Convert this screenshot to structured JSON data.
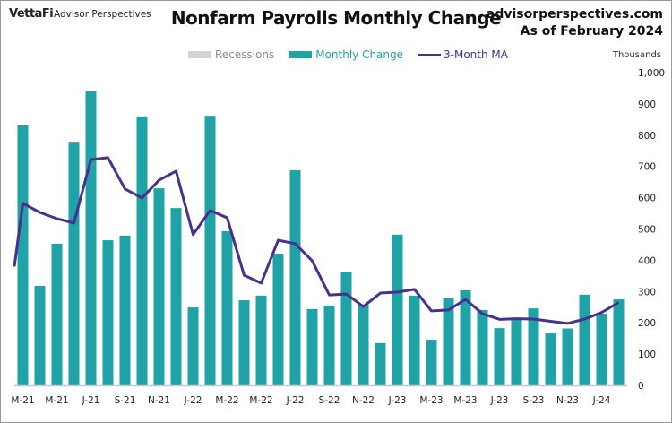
{
  "header": {
    "logo": "VettaFi",
    "logo_sub": "Advisor Perspectives",
    "title": "Nonfarm Payrolls Monthly Change",
    "site": "advisorperspectives.com",
    "as_of": "As of February 2024"
  },
  "legend": {
    "recessions": "Recessions",
    "monthly_change": "Monthly Change",
    "ma": "3-Month MA"
  },
  "colors": {
    "bars": "#1fa3a6",
    "ma_line": "#4a2f8c",
    "recessions": "#d4d4d4",
    "recession_text": "#8c8c8c"
  },
  "chart_data": {
    "type": "bar",
    "title": "Nonfarm Payrolls Monthly Change",
    "ylabel": "Thousands",
    "xlabel": "",
    "ylim": [
      0,
      1000
    ],
    "yticks": [
      "0",
      "100",
      "200",
      "300",
      "400",
      "500",
      "600",
      "700",
      "800",
      "900",
      "1,000"
    ],
    "ytick_values": [
      0,
      100,
      200,
      300,
      400,
      500,
      600,
      700,
      800,
      900,
      1000
    ],
    "y_axis_side": "right",
    "legend_position": "top-center",
    "grid": false,
    "categories": [
      "Mar-21",
      "Apr-21",
      "May-21",
      "Jun-21",
      "Jul-21",
      "Aug-21",
      "Sep-21",
      "Oct-21",
      "Nov-21",
      "Dec-21",
      "Jan-22",
      "Feb-22",
      "Mar-22",
      "Apr-22",
      "May-22",
      "Jun-22",
      "Jul-22",
      "Aug-22",
      "Sep-22",
      "Oct-22",
      "Nov-22",
      "Dec-22",
      "Jan-23",
      "Feb-23",
      "Mar-23",
      "Apr-23",
      "May-23",
      "Jun-23",
      "Jul-23",
      "Aug-23",
      "Sep-23",
      "Oct-23",
      "Nov-23",
      "Dec-23",
      "Jan-24",
      "Feb-24"
    ],
    "xtick_labels": [
      "M-21",
      "M-21",
      "J-21",
      "S-21",
      "N-21",
      "J-22",
      "M-22",
      "M-22",
      "J-22",
      "S-22",
      "N-22",
      "J-23",
      "M-23",
      "M-23",
      "J-23",
      "S-23",
      "N-23",
      "J-24"
    ],
    "series": [
      {
        "name": "Monthly Change",
        "type": "bar",
        "values": [
          831,
          318,
          453,
          776,
          940,
          464,
          479,
          860,
          630,
          567,
          249,
          862,
          493,
          272,
          287,
          421,
          688,
          244,
          255,
          361,
          258,
          135,
          482,
          287,
          146,
          278,
          304,
          241,
          183,
          209,
          246,
          166,
          182,
          290,
          229,
          275
        ]
      },
      {
        "name": "3-Month MA",
        "type": "line",
        "start_value": 380,
        "values": [
          582,
          553,
          533,
          519,
          722,
          728,
          628,
          599,
          656,
          685,
          482,
          559,
          536,
          352,
          327,
          464,
          453,
          398,
          289,
          292,
          252,
          295,
          298,
          307,
          238,
          241,
          275,
          229,
          211,
          213,
          212,
          205,
          198,
          212,
          233,
          265
        ]
      }
    ]
  }
}
